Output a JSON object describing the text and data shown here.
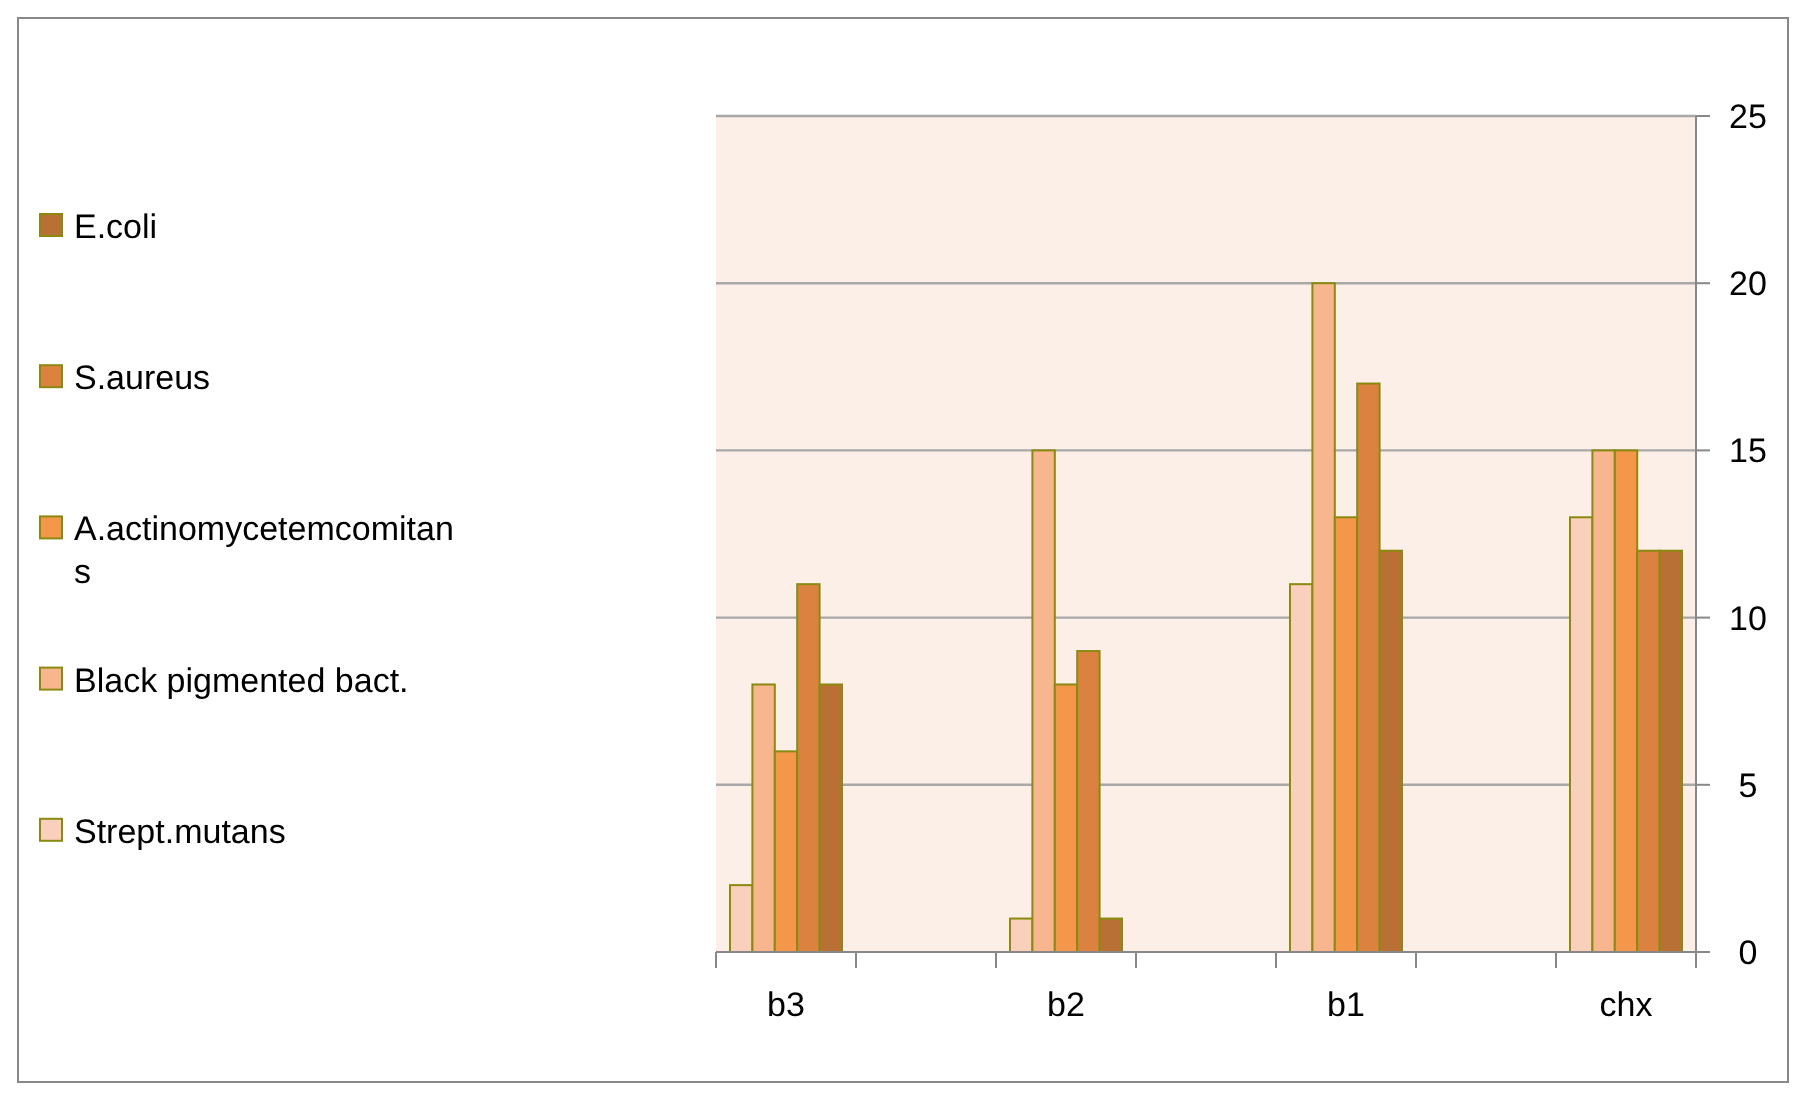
{
  "chart_data": {
    "type": "bar",
    "categories": [
      "b3",
      null,
      "b2",
      null,
      "b1",
      null,
      "chx"
    ],
    "series": [
      {
        "name": "Strept.mutans",
        "color": "#f9d0bc",
        "values": [
          2,
          null,
          1,
          null,
          11,
          null,
          13
        ]
      },
      {
        "name": "Black pigmented bact.",
        "color": "#f8b68e",
        "values": [
          8,
          null,
          15,
          null,
          20,
          null,
          15
        ]
      },
      {
        "name": "A.actinomycetemcomitans",
        "color": "#f5974a",
        "values": [
          6,
          null,
          8,
          null,
          13,
          null,
          15
        ]
      },
      {
        "name": "S.aureus",
        "color": "#dc8240",
        "values": [
          11,
          null,
          9,
          null,
          17,
          null,
          12
        ]
      },
      {
        "name": "E.coli",
        "color": "#b87034",
        "values": [
          8,
          null,
          1,
          null,
          12,
          null,
          12
        ]
      }
    ],
    "ylim": [
      0,
      25
    ],
    "yticks": [
      0,
      5,
      10,
      15,
      20,
      25
    ],
    "grid": "y",
    "legend": "left"
  }
}
